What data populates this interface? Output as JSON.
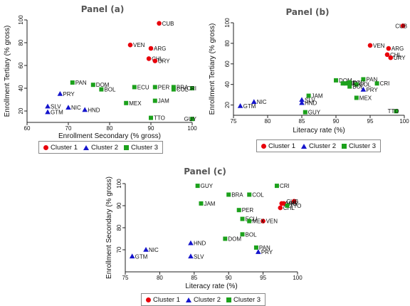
{
  "legend": [
    {
      "label": "Cluster 1",
      "symbol": "circle",
      "color": "#e8000b"
    },
    {
      "label": "Cluster 2",
      "symbol": "triangle",
      "color": "#1515cc"
    },
    {
      "label": "Cluster 3",
      "symbol": "square",
      "color": "#1ca11c"
    }
  ],
  "chart_data": [
    {
      "panel": "Panel (a)",
      "type": "scatter",
      "xlabel": "Enrollment Secondary (% gross)",
      "ylabel": "Enrollment Tertiary (% gross)",
      "xlim": [
        60,
        100
      ],
      "ylim": [
        10,
        100
      ],
      "xticks": [
        60,
        70,
        80,
        90,
        100
      ],
      "yticks": [
        20,
        40,
        60,
        80,
        100
      ],
      "grid": false,
      "legend_position": "bottom",
      "points": [
        {
          "label": "CUB",
          "cluster": 1,
          "x": 92,
          "y": 97
        },
        {
          "label": "VEN",
          "cluster": 1,
          "x": 85,
          "y": 78
        },
        {
          "label": "ARG",
          "cluster": 1,
          "x": 90,
          "y": 75
        },
        {
          "label": "CHL",
          "cluster": 1,
          "x": 89.5,
          "y": 66
        },
        {
          "label": "URY",
          "cluster": 1,
          "x": 91,
          "y": 64
        },
        {
          "label": "PAN",
          "cluster": 3,
          "x": 71,
          "y": 45
        },
        {
          "label": "PRY",
          "cluster": 2,
          "x": 68,
          "y": 35
        },
        {
          "label": "DOM",
          "cluster": 3,
          "x": 76,
          "y": 43
        },
        {
          "label": "BOL",
          "cluster": 3,
          "x": 78,
          "y": 39
        },
        {
          "label": "ECU",
          "cluster": 3,
          "x": 86,
          "y": 41
        },
        {
          "label": "PER",
          "cluster": 3,
          "x": 91,
          "y": 41
        },
        {
          "label": "BRA",
          "cluster": 3,
          "x": 95.5,
          "y": 41
        },
        {
          "label": "COL",
          "cluster": 3,
          "x": 95.5,
          "y": 39
        },
        {
          "label": "CRI",
          "cluster": 3,
          "x": 100,
          "y": 40
        },
        {
          "label": "MEX",
          "cluster": 3,
          "x": 84,
          "y": 27
        },
        {
          "label": "JAM",
          "cluster": 3,
          "x": 91,
          "y": 29
        },
        {
          "label": "SLV",
          "cluster": 2,
          "x": 65,
          "y": 24
        },
        {
          "label": "GTM",
          "cluster": 2,
          "x": 65,
          "y": 19
        },
        {
          "label": "NIC",
          "cluster": 2,
          "x": 70,
          "y": 23
        },
        {
          "label": "HND",
          "cluster": 2,
          "x": 74,
          "y": 21
        },
        {
          "label": "TTO",
          "cluster": 3,
          "x": 90,
          "y": 14
        },
        {
          "label": "GUY",
          "cluster": 3,
          "x": 100,
          "y": 13
        }
      ]
    },
    {
      "panel": "Panel (b)",
      "type": "scatter",
      "xlabel": "Literacy rate (%)",
      "ylabel": "Enrollment Tertiary (% gross)",
      "xlim": [
        75,
        100
      ],
      "ylim": [
        10,
        100
      ],
      "xticks": [
        75,
        80,
        85,
        90,
        95,
        100
      ],
      "yticks": [
        20,
        40,
        60,
        80,
        100
      ],
      "grid": false,
      "legend_position": "bottom",
      "points": [
        {
          "label": "CUB",
          "cluster": 1,
          "x": 99.8,
          "y": 97
        },
        {
          "label": "VEN",
          "cluster": 1,
          "x": 95,
          "y": 78
        },
        {
          "label": "ARG",
          "cluster": 1,
          "x": 97.7,
          "y": 75
        },
        {
          "label": "CHL",
          "cluster": 1,
          "x": 97.5,
          "y": 69
        },
        {
          "label": "URY",
          "cluster": 1,
          "x": 98,
          "y": 66
        },
        {
          "label": "CRI",
          "cluster": 3,
          "x": 96,
          "y": 41
        },
        {
          "label": "PAN",
          "cluster": 3,
          "x": 94,
          "y": 45
        },
        {
          "label": "DOM",
          "cluster": 3,
          "x": 90,
          "y": 44
        },
        {
          "label": "PER",
          "cluster": 3,
          "x": 91,
          "y": 41
        },
        {
          "label": "BRA",
          "cluster": 3,
          "x": 91.5,
          "y": 41
        },
        {
          "label": "ECU",
          "cluster": 3,
          "x": 92,
          "y": 42
        },
        {
          "label": "COL",
          "cluster": 3,
          "x": 93,
          "y": 40
        },
        {
          "label": "BOL",
          "cluster": 3,
          "x": 92,
          "y": 38
        },
        {
          "label": "PRY",
          "cluster": 2,
          "x": 94,
          "y": 35
        },
        {
          "label": "MEX",
          "cluster": 3,
          "x": 93,
          "y": 27
        },
        {
          "label": "JAM",
          "cluster": 3,
          "x": 86,
          "y": 29
        },
        {
          "label": "SLV",
          "cluster": 2,
          "x": 85,
          "y": 25
        },
        {
          "label": "HND",
          "cluster": 2,
          "x": 85,
          "y": 22
        },
        {
          "label": "NIC",
          "cluster": 2,
          "x": 78,
          "y": 23
        },
        {
          "label": "GTM",
          "cluster": 2,
          "x": 76,
          "y": 19
        },
        {
          "label": "GUY",
          "cluster": 3,
          "x": 85.5,
          "y": 13
        },
        {
          "label": "TTO",
          "cluster": 3,
          "x": 98.8,
          "y": 14
        }
      ]
    },
    {
      "panel": "Panel (c)",
      "type": "scatter",
      "xlabel": "Literacy rate (%)",
      "ylabel": "Enrollment Secondary (% gross)",
      "xlim": [
        75,
        100
      ],
      "ylim": [
        60,
        100
      ],
      "xticks": [
        75,
        80,
        85,
        90,
        95,
        100
      ],
      "yticks": [
        70,
        80,
        90,
        100
      ],
      "grid": false,
      "legend_position": "bottom",
      "points": [
        {
          "label": "GUY",
          "cluster": 3,
          "x": 85.5,
          "y": 99
        },
        {
          "label": "CRI",
          "cluster": 3,
          "x": 97,
          "y": 99
        },
        {
          "label": "BRA",
          "cluster": 3,
          "x": 90,
          "y": 95
        },
        {
          "label": "COL",
          "cluster": 3,
          "x": 93,
          "y": 95
        },
        {
          "label": "JAM",
          "cluster": 3,
          "x": 86,
          "y": 91
        },
        {
          "label": "PER",
          "cluster": 3,
          "x": 91.5,
          "y": 88
        },
        {
          "label": "CUB",
          "cluster": 1,
          "x": 99.5,
          "y": 92
        },
        {
          "label": "ARG",
          "cluster": 1,
          "x": 97.7,
          "y": 91
        },
        {
          "label": "URY",
          "cluster": 1,
          "x": 98,
          "y": 91
        },
        {
          "label": "CHL",
          "cluster": 1,
          "x": 97.5,
          "y": 89
        },
        {
          "label": "TTO",
          "cluster": 3,
          "x": 98.5,
          "y": 90
        },
        {
          "label": "VEN",
          "cluster": 1,
          "x": 95,
          "y": 83
        },
        {
          "label": "ECU",
          "cluster": 3,
          "x": 92,
          "y": 84
        },
        {
          "label": "MEX",
          "cluster": 3,
          "x": 93,
          "y": 83
        },
        {
          "label": "BOL",
          "cluster": 3,
          "x": 92,
          "y": 77
        },
        {
          "label": "DOM",
          "cluster": 3,
          "x": 89.5,
          "y": 75
        },
        {
          "label": "PAN",
          "cluster": 3,
          "x": 94,
          "y": 71
        },
        {
          "label": "PRY",
          "cluster": 2,
          "x": 94.3,
          "y": 69
        },
        {
          "label": "HND",
          "cluster": 2,
          "x": 84.5,
          "y": 73
        },
        {
          "label": "NIC",
          "cluster": 2,
          "x": 78,
          "y": 70
        },
        {
          "label": "GTM",
          "cluster": 2,
          "x": 76,
          "y": 67
        },
        {
          "label": "SLV",
          "cluster": 2,
          "x": 84.5,
          "y": 67
        }
      ]
    }
  ]
}
